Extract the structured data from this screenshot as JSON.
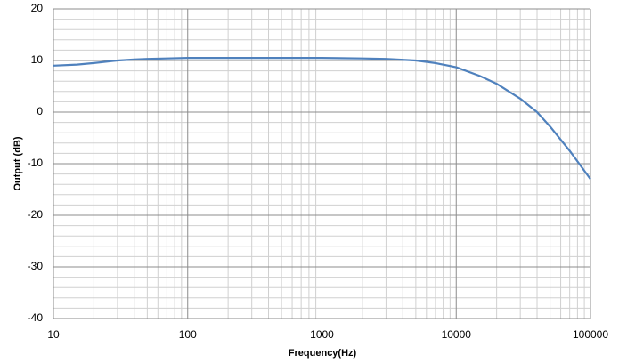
{
  "chart_data": {
    "type": "line",
    "x_label": "Frequency(Hz)",
    "y_label": "Output (dB)",
    "x": [
      10,
      15,
      20,
      30,
      40,
      50,
      70,
      100,
      200,
      500,
      1000,
      2000,
      3000,
      5000,
      7000,
      10000,
      15000,
      20000,
      30000,
      40000,
      50000,
      70000,
      100000
    ],
    "series": [
      {
        "color": "#4f81bd",
        "values": [
          9.0,
          9.2,
          9.5,
          10.0,
          10.2,
          10.3,
          10.4,
          10.5,
          10.5,
          10.5,
          10.5,
          10.4,
          10.3,
          10.0,
          9.5,
          8.7,
          7.0,
          5.5,
          2.6,
          0.0,
          -2.8,
          -7.5,
          -13.0
        ]
      }
    ],
    "xscale": "log",
    "xlim": [
      10,
      100000
    ],
    "xticks": [
      10,
      100,
      1000,
      10000,
      100000
    ],
    "ylim": [
      -40,
      20
    ],
    "yticks": [
      -40,
      -30,
      -20,
      -10,
      0,
      10,
      20
    ],
    "grid": true,
    "minor_grid": true
  }
}
